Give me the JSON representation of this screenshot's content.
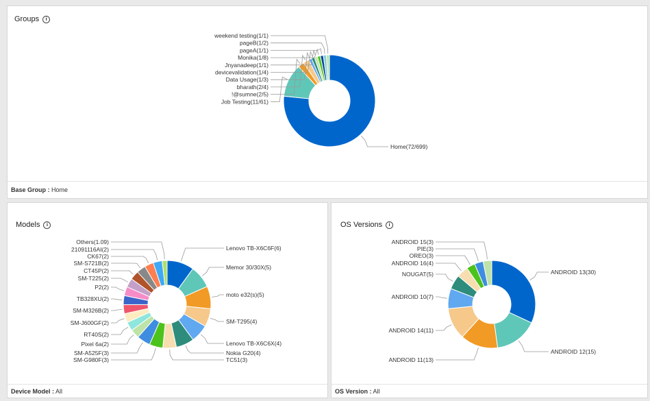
{
  "groups_panel": {
    "title": "Groups",
    "footer_label": "Base Group :",
    "footer_value": "Home"
  },
  "models_panel": {
    "title": "Models",
    "footer_label": "Device Model :",
    "footer_value": "All"
  },
  "os_panel": {
    "title": "OS Versions",
    "footer_label": "OS Version :",
    "footer_value": "All"
  },
  "chart_data": [
    {
      "type": "pie",
      "title": "Groups",
      "donut": true,
      "labels": [
        "Home(72/699)",
        "Job Testing(11/61)",
        "!@sumne(2/5)",
        "bharath(2/4)",
        "Data Usage(1/3)",
        "devicevalidation(1/4)",
        "Jnyanadeep(1/1)",
        "Monika(1/8)",
        "pageA(1/1)",
        "pageB(1/2)",
        "weekend testing(1/1)"
      ],
      "values": [
        72,
        11,
        2,
        2,
        1,
        1,
        1,
        1,
        1,
        1,
        1
      ],
      "colors": [
        "#0066cc",
        "#5fc7b8",
        "#f19a25",
        "#f6c88a",
        "#60a8f0",
        "#2e8c7c",
        "#bde3a8",
        "#4cc31d",
        "#0d47a1",
        "#85cfd9",
        "#b9e6a5"
      ]
    },
    {
      "type": "pie",
      "title": "Models",
      "donut": true,
      "labels": [
        "Lenovo TB-X6C6F(6)",
        "Memor 30/30X(5)",
        "moto e32(s)(5)",
        "SM-T295(4)",
        "Lenovo TB-X6C6X(4)",
        "Nokia G20(4)",
        "TC51(3)",
        "SM-G980F(3)",
        "SM-A525F(3)",
        "Pixel 6a(2)",
        "RT40S(2)",
        "SM-J600GF(2)",
        "SM-M326B(2)",
        "TB328XU(2)",
        "P2(2)",
        "SM-T225(2)",
        "CT45P(2)",
        "SM-S721B(2)",
        "CK67(2)",
        "21091116AI(2)",
        "Others(1.09)"
      ],
      "values": [
        6,
        5,
        5,
        4,
        4,
        4,
        3,
        3,
        3,
        2,
        2,
        2,
        2,
        2,
        2,
        2,
        2,
        2,
        2,
        2,
        1.09
      ],
      "colors": [
        "#0066cc",
        "#5fc7b8",
        "#f19a25",
        "#f6c88a",
        "#60a8f0",
        "#2e8c7c",
        "#f6deb0",
        "#4cc31d",
        "#3f8de0",
        "#bde3a8",
        "#8ee6dc",
        "#fcecc0",
        "#f0566b",
        "#3a64c9",
        "#f58cc8",
        "#c4a0c9",
        "#b0522a",
        "#888888",
        "#ff7f50",
        "#3fa9f5",
        "#aee06a"
      ]
    },
    {
      "type": "pie",
      "title": "OS Versions",
      "donut": true,
      "labels": [
        "ANDROID 13(30)",
        "ANDROID 12(15)",
        "ANDROID 11(13)",
        "ANDROID 14(11)",
        "ANDROID 10(7)",
        "NOUGAT(5)",
        "ANDROID 16(4)",
        "OREO(3)",
        "PIE(3)",
        "ANDROID 15(3)"
      ],
      "values": [
        30,
        15,
        13,
        11,
        7,
        5,
        4,
        3,
        3,
        3
      ],
      "colors": [
        "#0066cc",
        "#5fc7b8",
        "#f19a25",
        "#f6c88a",
        "#60a8f0",
        "#2e8c7c",
        "#f6deb0",
        "#4cc31d",
        "#3f8de0",
        "#bde3a8"
      ]
    }
  ]
}
